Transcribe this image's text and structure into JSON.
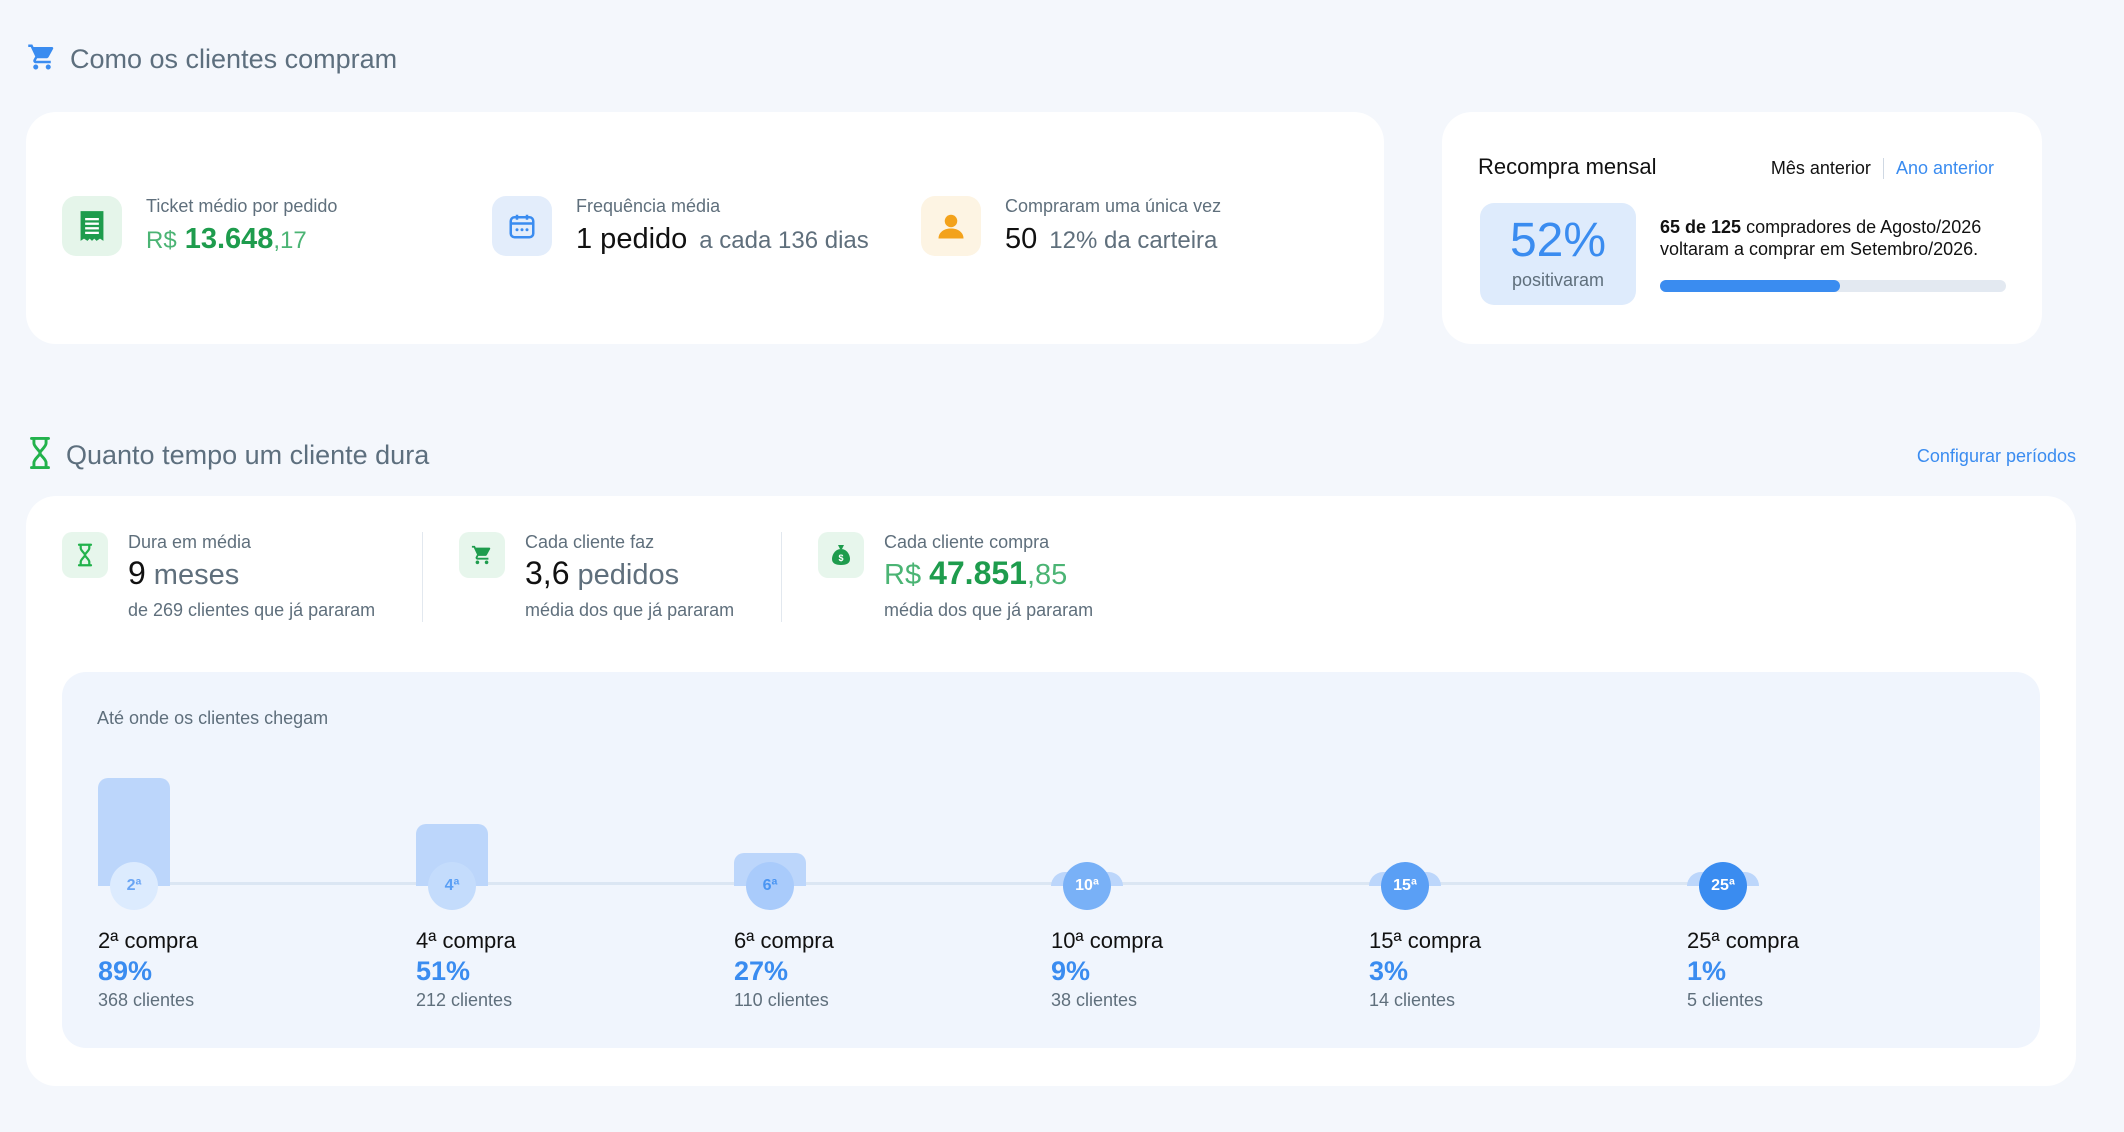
{
  "section1": {
    "title": "Como os clientes compram",
    "icon": "cart-icon"
  },
  "kpis": [
    {
      "label": "Ticket médio por pedido",
      "currency": "R$",
      "main": "13.648",
      "cents": ",17",
      "icon": "receipt-icon"
    },
    {
      "label": "Frequência média",
      "main": "1 pedido",
      "suffix": "a cada 136 dias",
      "icon": "calendar-icon"
    },
    {
      "label": "Compraram uma única vez",
      "main": "50",
      "suffix": "12% da carteira",
      "icon": "person-icon"
    }
  ],
  "recompra": {
    "title": "Recompra mensal",
    "tab_active": "Mês anterior",
    "tab_other": "Ano anterior",
    "pct": "52%",
    "pct_label": "positivaram",
    "text_bold": "65 de 125",
    "text_rest": " compradores de Agosto/2026 voltaram a comprar em Setembro/2026.",
    "progress": 0.52
  },
  "section2": {
    "title": "Quanto tempo um cliente dura",
    "icon": "hourglass-icon",
    "link": "Configurar períodos"
  },
  "life_stats": [
    {
      "label": "Dura em média",
      "main": "9",
      "unit": "meses",
      "note": "de 269 clientes que já pararam",
      "icon": "hourglass-icon"
    },
    {
      "label": "Cada cliente faz",
      "main": "3,6",
      "unit": "pedidos",
      "note": "média dos que já pararam",
      "icon": "cart-icon"
    },
    {
      "label": "Cada cliente compra",
      "currency": "R$",
      "main": "47.851",
      "cents": ",85",
      "note": "média dos que já pararam",
      "icon": "money-bag-icon"
    }
  ],
  "funnel": {
    "title": "Até onde os clientes chegam",
    "steps": [
      {
        "badge": "2ª",
        "name": "2ª compra",
        "pct": "89%",
        "value": 89,
        "count": "368 clientes"
      },
      {
        "badge": "4ª",
        "name": "4ª compra",
        "pct": "51%",
        "value": 51,
        "count": "212 clientes"
      },
      {
        "badge": "6ª",
        "name": "6ª compra",
        "pct": "27%",
        "value": 27,
        "count": "110 clientes"
      },
      {
        "badge": "10ª",
        "name": "10ª compra",
        "pct": "9%",
        "value": 9,
        "count": "38 clientes"
      },
      {
        "badge": "15ª",
        "name": "15ª compra",
        "pct": "3%",
        "value": 3,
        "count": "14 clientes"
      },
      {
        "badge": "25ª",
        "name": "25ª compra",
        "pct": "1%",
        "value": 1,
        "count": "5 clientes"
      }
    ]
  }
}
